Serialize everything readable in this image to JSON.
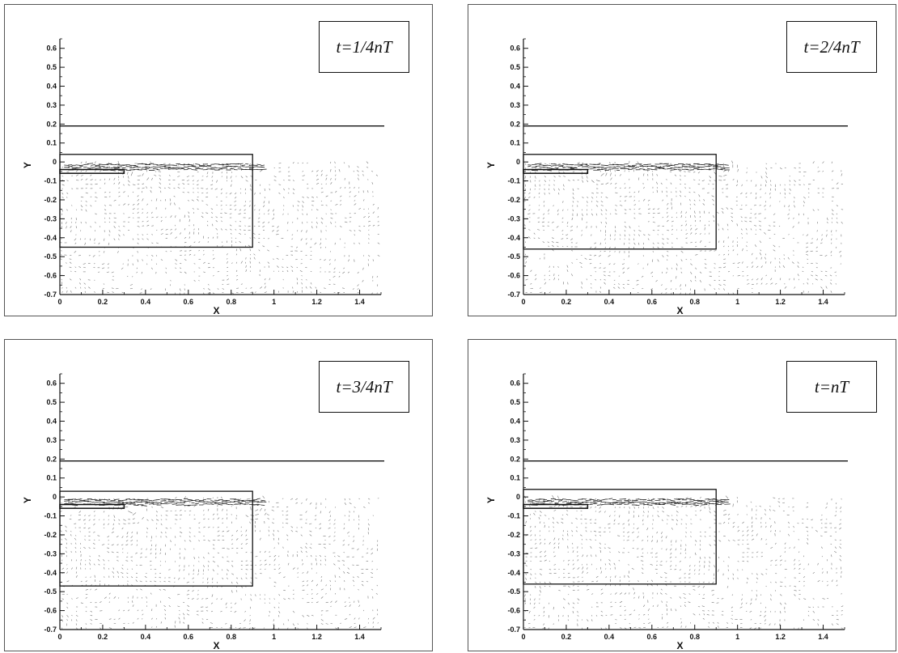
{
  "chart_data": [
    {
      "type": "vector-field",
      "time_label": "t=1/4nT",
      "xlabel": "X",
      "ylabel": "Y",
      "xlim": [
        0,
        1.5
      ],
      "ylim": [
        -0.7,
        0.65
      ],
      "xticks": [
        "0",
        "0.2",
        "0.4",
        "0.6",
        "0.8",
        "1",
        "1.2",
        "1.4"
      ],
      "yticks": [
        "0.6",
        "0.5",
        "0.4",
        "0.3",
        "0.2",
        "0.1",
        "0",
        "-0.1",
        "-0.2",
        "-0.3",
        "-0.4",
        "-0.5",
        "-0.6",
        "-0.7"
      ],
      "free_surface_y": 0.19,
      "body": {
        "x0": 0,
        "x1": 0.9,
        "y0": -0.45,
        "y1": 0.04
      },
      "plate": {
        "x0": 0,
        "x1": 0.3,
        "y0": -0.06,
        "y1": -0.04
      },
      "vortex_centers": [
        [
          0.36,
          -0.06
        ],
        [
          0.91,
          -0.02
        ]
      ],
      "field_x_range": [
        0,
        1.5
      ],
      "field_y_range": [
        -0.7,
        0
      ]
    },
    {
      "type": "vector-field",
      "time_label": "t=2/4nT",
      "xlabel": "X",
      "ylabel": "Y",
      "xlim": [
        0,
        1.5
      ],
      "ylim": [
        -0.7,
        0.65
      ],
      "xticks": [
        "0",
        "0.2",
        "0.4",
        "0.6",
        "0.8",
        "1",
        "1.2",
        "1.4"
      ],
      "yticks": [
        "0.6",
        "0.5",
        "0.4",
        "0.3",
        "0.2",
        "0.1",
        "0",
        "-0.1",
        "-0.2",
        "-0.3",
        "-0.4",
        "-0.5",
        "-0.6",
        "-0.7"
      ],
      "free_surface_y": 0.19,
      "body": {
        "x0": 0,
        "x1": 0.9,
        "y0": -0.46,
        "y1": 0.04
      },
      "plate": {
        "x0": 0,
        "x1": 0.3,
        "y0": -0.06,
        "y1": -0.04
      },
      "vortex_centers": [
        [
          0.35,
          -0.06
        ],
        [
          0.92,
          -0.03
        ]
      ],
      "field_x_range": [
        0,
        1.5
      ],
      "field_y_range": [
        -0.7,
        0
      ]
    },
    {
      "type": "vector-field",
      "time_label": "t=3/4nT",
      "xlabel": "X",
      "ylabel": "Y",
      "xlim": [
        0,
        1.5
      ],
      "ylim": [
        -0.7,
        0.65
      ],
      "xticks": [
        "0",
        "0.2",
        "0.4",
        "0.6",
        "0.8",
        "1",
        "1.2",
        "1.4"
      ],
      "yticks": [
        "0.6",
        "0.5",
        "0.4",
        "0.3",
        "0.2",
        "0.1",
        "0",
        "-0.1",
        "-0.2",
        "-0.3",
        "-0.4",
        "-0.5",
        "-0.6",
        "-0.7"
      ],
      "free_surface_y": 0.19,
      "body": {
        "x0": 0,
        "x1": 0.9,
        "y0": -0.47,
        "y1": 0.03
      },
      "plate": {
        "x0": 0,
        "x1": 0.3,
        "y0": -0.06,
        "y1": -0.04
      },
      "vortex_centers": [
        [
          0.32,
          -0.07
        ],
        [
          0.9,
          -0.05
        ]
      ],
      "field_x_range": [
        0,
        1.5
      ],
      "field_y_range": [
        -0.7,
        0
      ]
    },
    {
      "type": "vector-field",
      "time_label": "t=nT",
      "xlabel": "X",
      "ylabel": "Y",
      "xlim": [
        0,
        1.5
      ],
      "ylim": [
        -0.7,
        0.65
      ],
      "xticks": [
        "0",
        "0.2",
        "0.4",
        "0.6",
        "0.8",
        "1",
        "1.2",
        "1.4"
      ],
      "yticks": [
        "0.6",
        "0.5",
        "0.4",
        "0.3",
        "0.2",
        "0.1",
        "0",
        "-0.1",
        "-0.2",
        "-0.3",
        "-0.4",
        "-0.5",
        "-0.6",
        "-0.7"
      ],
      "free_surface_y": 0.19,
      "body": {
        "x0": 0,
        "x1": 0.9,
        "y0": -0.46,
        "y1": 0.04
      },
      "plate": {
        "x0": 0,
        "x1": 0.3,
        "y0": -0.06,
        "y1": -0.04
      },
      "vortex_centers": [
        [
          0.12,
          -0.02
        ],
        [
          0.92,
          -0.04
        ]
      ],
      "field_x_range": [
        0,
        1.5
      ],
      "field_y_range": [
        -0.7,
        0
      ]
    }
  ]
}
